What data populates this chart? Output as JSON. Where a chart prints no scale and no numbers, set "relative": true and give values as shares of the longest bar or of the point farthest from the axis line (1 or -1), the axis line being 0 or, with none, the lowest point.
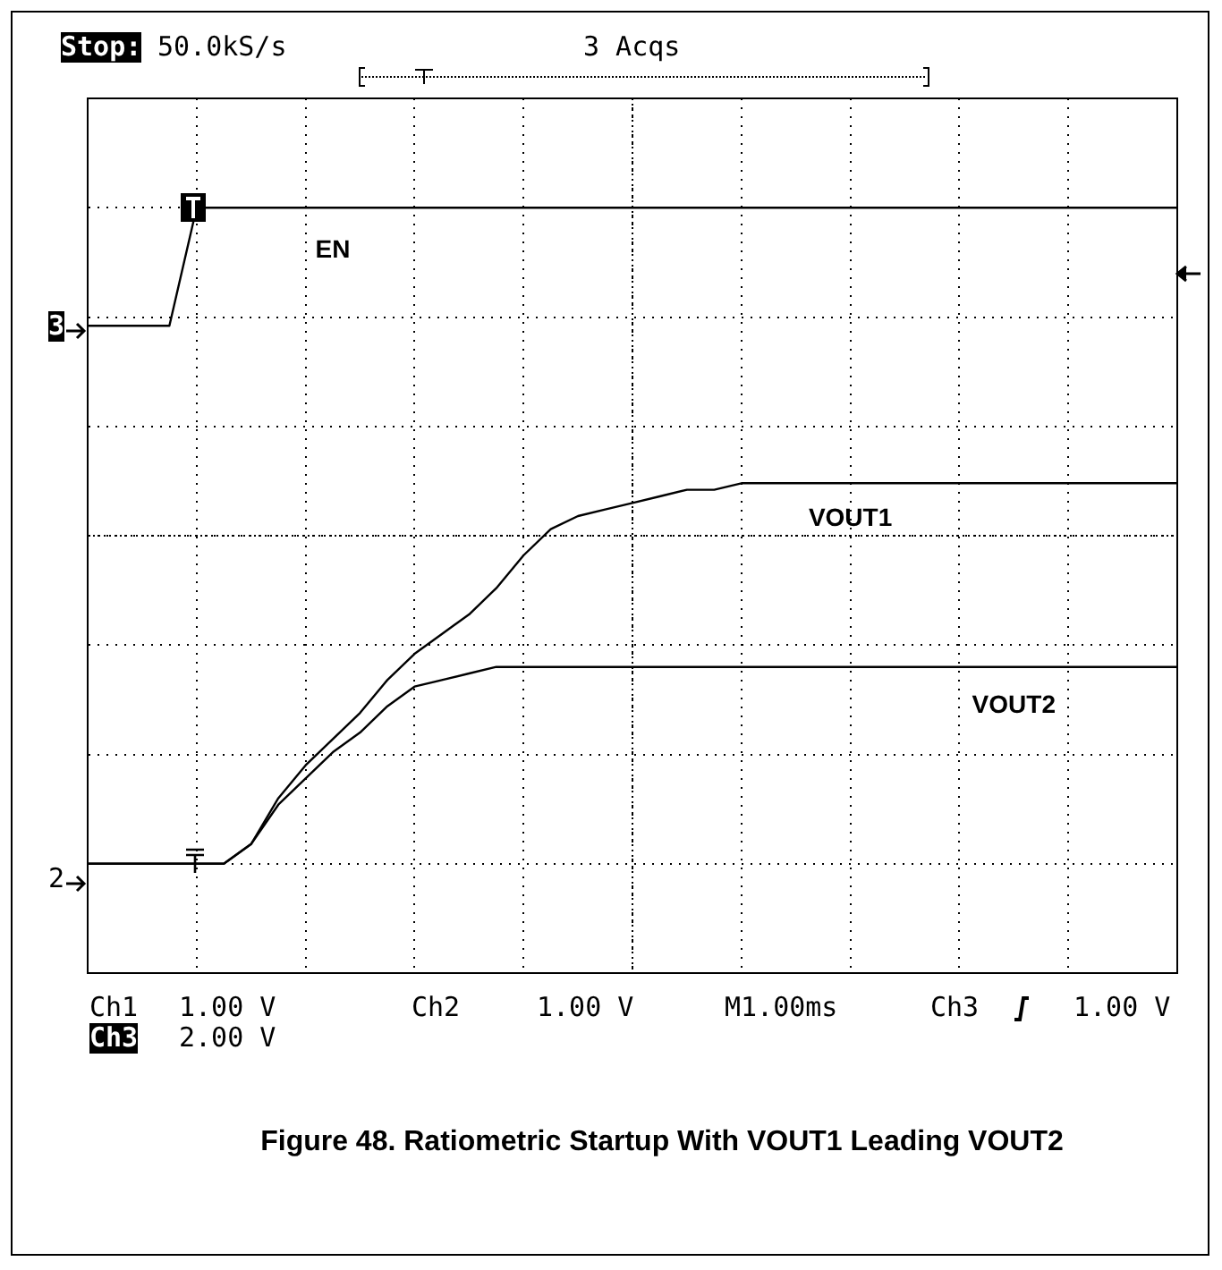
{
  "chart_data": {
    "type": "line",
    "title": "Figure 48. Ratiometric Startup With VOUT1 Leading VOUT2",
    "relative": true,
    "grid": true,
    "legend": false,
    "marker": "none",
    "line_style": "solid",
    "categories": [
      null,
      null,
      null,
      null,
      null,
      null,
      null,
      null,
      null,
      null,
      null,
      null,
      null,
      null,
      null,
      null,
      null,
      null,
      null,
      null,
      null,
      null,
      null,
      null,
      null,
      null,
      null,
      null,
      null,
      null,
      null,
      null,
      null,
      null,
      null,
      null,
      null,
      null,
      null,
      null,
      null
    ],
    "series": [
      {
        "name": "EN",
        "color": "#000000",
        "values": [
          0.82,
          0.82,
          0.82,
          0.82,
          1,
          1,
          1,
          1,
          1,
          1,
          1,
          1,
          1,
          1,
          1,
          1,
          1,
          1,
          1,
          1,
          1,
          1,
          1,
          1,
          1,
          1,
          1,
          1,
          1,
          1,
          1,
          1,
          1,
          1,
          1,
          1,
          1,
          1,
          1,
          1,
          1
        ]
      },
      {
        "name": "VOUT1",
        "color": "#000000",
        "values": [
          0,
          0,
          0,
          0,
          0,
          0,
          0.03,
          0.1,
          0.15,
          0.19,
          0.23,
          0.28,
          0.32,
          0.35,
          0.38,
          0.42,
          0.47,
          0.51,
          0.53,
          0.54,
          0.55,
          0.56,
          0.57,
          0.57,
          0.58,
          0.58,
          0.58,
          0.58,
          0.58,
          0.58,
          0.58,
          0.58,
          0.58,
          0.58,
          0.58,
          0.58,
          0.58,
          0.58,
          0.58,
          0.58,
          0.58
        ]
      },
      {
        "name": "VOUT2",
        "color": "#000000",
        "values": [
          0,
          0,
          0,
          0,
          0,
          0,
          0.03,
          0.09,
          0.13,
          0.17,
          0.2,
          0.24,
          0.27,
          0.28,
          0.29,
          0.3,
          0.3,
          0.3,
          0.3,
          0.3,
          0.3,
          0.3,
          0.3,
          0.3,
          0.3,
          0.3,
          0.3,
          0.3,
          0.3,
          0.3,
          0.3,
          0.3,
          0.3,
          0.3,
          0.3,
          0.3,
          0.3,
          0.3,
          0.3,
          0.3,
          0.3
        ]
      }
    ],
    "annotations": [
      "Stop:",
      "50.0kS/s",
      "3 Acqs",
      "3",
      "2",
      "Ch1",
      "1.00 V",
      "Ch2",
      "1.00 V",
      "M1.00ms",
      "Ch3",
      "1.00 V",
      "Ch3",
      "2.00 V"
    ]
  }
}
